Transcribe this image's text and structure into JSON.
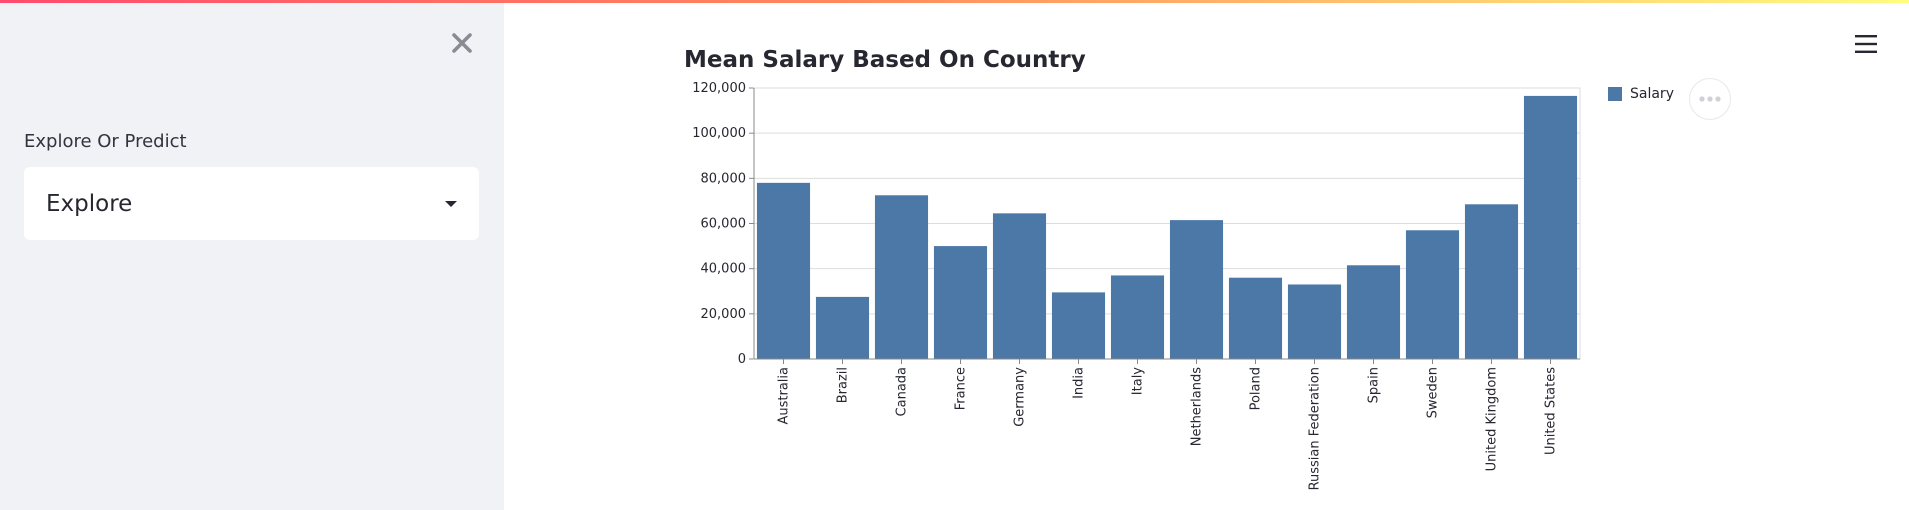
{
  "sidebar": {
    "select_label": "Explore Or Predict",
    "select_value": "Explore",
    "close_icon": "close-icon",
    "caret_icon": "caret-down-icon"
  },
  "header": {
    "menu_icon": "hamburger-menu-icon"
  },
  "colors": {
    "accent_gradient_start": "#ff4b6e",
    "accent_gradient_end": "#fffd80",
    "bar_color": "#4c78a8",
    "sidebar_bg": "#f0f2f6"
  },
  "chart_data": {
    "type": "bar",
    "title": "Mean Salary Based On Country",
    "xlabel": "",
    "ylabel": "",
    "ylim": [
      0,
      120000
    ],
    "yticks": [
      0,
      20000,
      40000,
      60000,
      80000,
      100000,
      120000
    ],
    "ytick_labels": [
      "0",
      "20,000",
      "40,000",
      "60,000",
      "80,000",
      "100,000",
      "120,000"
    ],
    "categories": [
      "Australia",
      "Brazil",
      "Canada",
      "France",
      "Germany",
      "India",
      "Italy",
      "Netherlands",
      "Poland",
      "Russian Federation",
      "Spain",
      "Sweden",
      "United Kingdom",
      "United States"
    ],
    "series": [
      {
        "name": "Salary",
        "values": [
          78000,
          27500,
          72500,
          50000,
          64500,
          29500,
          37000,
          61500,
          36000,
          33000,
          41500,
          57000,
          68500,
          116500
        ]
      }
    ],
    "legend": [
      "Salary"
    ],
    "legend_position": "top-right",
    "grid": true
  },
  "chart_actions": {
    "more_icon": "more-actions-icon"
  }
}
